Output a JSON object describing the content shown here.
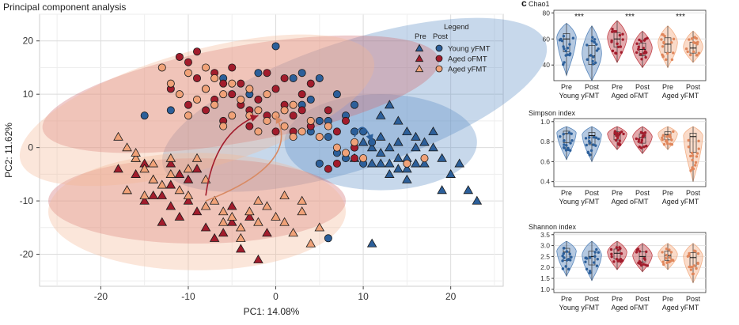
{
  "pca": {
    "title": "Principal component analysis",
    "xlabel": "PC1: 14.08%",
    "ylabel": "PC2: 11.62%",
    "legend": {
      "title": "Legend",
      "col_pre": "Pre",
      "col_post": "Post",
      "rows": [
        "Young yFMT",
        "Aged oFMT",
        "Aged yFMT"
      ]
    }
  },
  "panel_letter": "c",
  "stars": "***",
  "group_labels": [
    "Young yFMT",
    "Aged oFMT",
    "Aged yFMT"
  ],
  "prepost": [
    "Pre",
    "Post"
  ],
  "colors": {
    "young": "#2c5f9a",
    "aged_o": "#a21c2c",
    "aged_y": "#f0a278",
    "young_violin": "#5a88bd",
    "aged_o_violin": "#c24048",
    "aged_y_violin": "#f3b088"
  },
  "chart_data": [
    {
      "type": "scatter",
      "title": "Principal component analysis",
      "xlabel": "PC1: 14.08%",
      "ylabel": "PC2: 11.62%",
      "xlim": [
        -27,
        26
      ],
      "ylim": [
        -26,
        25
      ],
      "xticks": [
        -20,
        -10,
        0,
        10,
        20
      ],
      "yticks": [
        -20,
        -10,
        0,
        10,
        20
      ],
      "grid": true,
      "legend_position": "top-right",
      "ellipses": [
        {
          "group": "Young yFMT",
          "cx": 9,
          "cy": 8,
          "rx": 23,
          "ry": 12,
          "angle": 18
        },
        {
          "group": "Young yFMT",
          "cx": 12,
          "cy": 1,
          "rx": 11,
          "ry": 9,
          "angle": 0
        },
        {
          "group": "Aged oFMT",
          "cx": -4,
          "cy": 10,
          "rx": 23,
          "ry": 9,
          "angle": 10
        },
        {
          "group": "Aged oFMT",
          "cx": -9,
          "cy": -10,
          "rx": 17,
          "ry": 8,
          "angle": 0
        },
        {
          "group": "Aged yFMT",
          "cx": -9,
          "cy": 7,
          "rx": 21,
          "ry": 11,
          "angle": 16
        },
        {
          "group": "Aged yFMT",
          "cx": -9,
          "cy": -12,
          "rx": 17,
          "ry": 11,
          "angle": 0
        }
      ],
      "series": [
        {
          "name": "Young yFMT Pre",
          "marker": "triangle",
          "color": "#2c5f9a",
          "points": [
            [
              13,
              8
            ],
            [
              14,
              5
            ],
            [
              15,
              3
            ],
            [
              12,
              2
            ],
            [
              11,
              0
            ],
            [
              14,
              1
            ],
            [
              16,
              2
            ],
            [
              17,
              1
            ],
            [
              13,
              0
            ],
            [
              12,
              -1
            ],
            [
              15,
              -2
            ],
            [
              16,
              -3
            ],
            [
              14,
              -4
            ],
            [
              13,
              -5
            ],
            [
              12,
              -3
            ],
            [
              11,
              -3
            ],
            [
              15,
              -6
            ],
            [
              17,
              -3
            ],
            [
              18,
              0
            ],
            [
              19,
              -2
            ],
            [
              20,
              -5
            ],
            [
              21,
              -3
            ],
            [
              22,
              -8
            ],
            [
              23,
              -10
            ],
            [
              19,
              -8
            ],
            [
              13,
              -3
            ],
            [
              14,
              -2
            ],
            [
              11,
              -18
            ],
            [
              9,
              -2
            ],
            [
              10,
              1
            ],
            [
              16,
              0
            ],
            [
              18,
              3
            ],
            [
              12,
              6
            ],
            [
              15,
              -4
            ]
          ]
        },
        {
          "name": "Young yFMT Post",
          "marker": "circle",
          "color": "#2c5f9a",
          "points": [
            [
              0,
              19
            ],
            [
              -2,
              14
            ],
            [
              -6,
              13
            ],
            [
              -3,
              10
            ],
            [
              2,
              13
            ],
            [
              3,
              14
            ],
            [
              5,
              13
            ],
            [
              4,
              9
            ],
            [
              7,
              10
            ],
            [
              6,
              5
            ],
            [
              8,
              6
            ],
            [
              9,
              8
            ],
            [
              10,
              3
            ],
            [
              6,
              2
            ],
            [
              7,
              -1
            ],
            [
              5,
              -3
            ],
            [
              8,
              -2
            ],
            [
              9,
              0
            ],
            [
              -15,
              6
            ],
            [
              -12,
              7
            ],
            [
              3,
              8
            ],
            [
              11,
              1
            ],
            [
              6,
              -17
            ],
            [
              9,
              3
            ],
            [
              4,
              3
            ],
            [
              10,
              -3
            ],
            [
              5,
              5
            ]
          ]
        },
        {
          "name": "Aged oFMT Pre",
          "marker": "triangle",
          "color": "#a21c2c",
          "points": [
            [
              -17,
              -8
            ],
            [
              -16,
              -5
            ],
            [
              -18,
              -4
            ],
            [
              -15,
              -3
            ],
            [
              -14,
              -6
            ],
            [
              -13,
              -9
            ],
            [
              -12,
              -11
            ],
            [
              -11,
              -13
            ],
            [
              -13,
              -14
            ],
            [
              -12,
              -7
            ],
            [
              -10,
              -10
            ],
            [
              -9,
              -12
            ],
            [
              -8,
              -15
            ],
            [
              -6,
              -16
            ],
            [
              -5,
              -14
            ],
            [
              -3,
              -13
            ],
            [
              -4,
              -19
            ],
            [
              -7,
              -17
            ],
            [
              -5,
              -11
            ],
            [
              -1,
              -16
            ],
            [
              -2,
              -21
            ],
            [
              -14,
              -9
            ],
            [
              -11,
              -5
            ],
            [
              -9,
              -4
            ],
            [
              -10,
              -6
            ],
            [
              -16,
              -2
            ],
            [
              -12,
              -3
            ],
            [
              -15,
              -10
            ]
          ]
        },
        {
          "name": "Aged oFMT Post",
          "marker": "circle",
          "color": "#a21c2c",
          "points": [
            [
              -11,
              17
            ],
            [
              -10,
              16
            ],
            [
              -9,
              13
            ],
            [
              -8,
              11
            ],
            [
              -7,
              9
            ],
            [
              -6,
              12
            ],
            [
              -5,
              10
            ],
            [
              -4,
              8
            ],
            [
              -3,
              7
            ],
            [
              -2,
              9
            ],
            [
              -1,
              6
            ],
            [
              0,
              11
            ],
            [
              1,
              8
            ],
            [
              2,
              6
            ],
            [
              3,
              10
            ],
            [
              4,
              4
            ],
            [
              5,
              2
            ],
            [
              6,
              7
            ],
            [
              7,
              3
            ],
            [
              8,
              5
            ],
            [
              9,
              0
            ],
            [
              -9,
              18
            ],
            [
              -7,
              14
            ],
            [
              -5,
              15
            ],
            [
              -12,
              11
            ],
            [
              -10,
              8
            ],
            [
              -6,
              5
            ],
            [
              -4,
              12
            ],
            [
              1,
              13
            ],
            [
              2,
              3
            ],
            [
              -8,
              7
            ],
            [
              -3,
              4
            ],
            [
              0,
              3
            ],
            [
              6,
              -4
            ],
            [
              7,
              -3
            ],
            [
              9,
              -2
            ],
            [
              -1,
              14
            ],
            [
              4,
              12
            ],
            [
              3,
              7
            ]
          ]
        },
        {
          "name": "Aged yFMT Pre",
          "marker": "triangle",
          "color": "#f0a278",
          "points": [
            [
              -18,
              2
            ],
            [
              -17,
              0
            ],
            [
              -16,
              -2
            ],
            [
              -15,
              -4
            ],
            [
              -14,
              -6
            ],
            [
              -13,
              -7
            ],
            [
              -12,
              -5
            ],
            [
              -11,
              -8
            ],
            [
              -10,
              -4
            ],
            [
              -9,
              -2
            ],
            [
              -8,
              -6
            ],
            [
              -7,
              -10
            ],
            [
              -6,
              -12
            ],
            [
              -5,
              -13
            ],
            [
              -4,
              -15
            ],
            [
              -3,
              -12
            ],
            [
              -2,
              -10
            ],
            [
              -1,
              -11
            ],
            [
              0,
              -13
            ],
            [
              1,
              -14
            ],
            [
              2,
              -16
            ],
            [
              3,
              -12
            ],
            [
              4,
              -18
            ],
            [
              5,
              -15
            ],
            [
              -16,
              -1
            ],
            [
              -14,
              -3
            ],
            [
              -12,
              -2
            ],
            [
              -10,
              -9
            ],
            [
              -8,
              -11
            ],
            [
              -6,
              -14
            ],
            [
              -4,
              -17
            ],
            [
              -2,
              -14
            ],
            [
              -17,
              -8
            ],
            [
              -15,
              -9
            ],
            [
              1,
              -9
            ],
            [
              3,
              -10
            ]
          ]
        },
        {
          "name": "Aged yFMT Post",
          "marker": "circle",
          "color": "#f0a278",
          "points": [
            [
              -13,
              15
            ],
            [
              -12,
              12
            ],
            [
              -11,
              10
            ],
            [
              -10,
              14
            ],
            [
              -9,
              9
            ],
            [
              -8,
              11
            ],
            [
              -7,
              8
            ],
            [
              -6,
              10
            ],
            [
              -5,
              12
            ],
            [
              -4,
              9
            ],
            [
              -3,
              6
            ],
            [
              -2,
              7
            ],
            [
              -1,
              5
            ],
            [
              0,
              6
            ],
            [
              1,
              4
            ],
            [
              2,
              8
            ],
            [
              3,
              3
            ],
            [
              4,
              5
            ],
            [
              5,
              2
            ],
            [
              6,
              4
            ],
            [
              7,
              0
            ],
            [
              8,
              -1
            ],
            [
              9,
              1
            ],
            [
              10,
              -2
            ],
            [
              -7,
              13
            ],
            [
              -5,
              6
            ],
            [
              -3,
              11
            ],
            [
              -1,
              10
            ],
            [
              1,
              7
            ],
            [
              -8,
              15
            ],
            [
              -10,
              6
            ],
            [
              -6,
              4
            ],
            [
              17,
              -2
            ],
            [
              15,
              -3
            ],
            [
              -2,
              3
            ],
            [
              2,
              2
            ]
          ]
        }
      ],
      "trajectories": [
        {
          "group": "Young yFMT",
          "from": [
            9,
            2
          ],
          "to": [
            11,
            1
          ],
          "via": [
            10,
            6
          ]
        },
        {
          "group": "Aged oFMT",
          "from": [
            -8,
            -9
          ],
          "to": [
            -2,
            6
          ],
          "via": [
            -7,
            3
          ]
        },
        {
          "group": "Aged yFMT",
          "from": [
            -8,
            -10
          ],
          "to": [
            0,
            6
          ],
          "via": [
            3,
            -3
          ]
        }
      ]
    },
    {
      "type": "violin",
      "title": "Chao1",
      "ylim": [
        28,
        82
      ],
      "yticks": [
        40,
        60,
        80
      ],
      "categories": [
        "Young yFMT Pre",
        "Young yFMT Post",
        "Aged oFMT Pre",
        "Aged oFMT Post",
        "Aged yFMT Pre",
        "Aged yFMT Post"
      ],
      "medians": [
        60,
        47,
        60,
        52,
        56,
        53
      ],
      "ranges": [
        [
          32,
          72
        ],
        [
          28,
          70
        ],
        [
          42,
          74
        ],
        [
          38,
          66
        ],
        [
          38,
          70
        ],
        [
          42,
          66
        ]
      ],
      "significance": [
        "***",
        "***",
        "***"
      ]
    },
    {
      "type": "violin",
      "title": "Simpson index",
      "ylim": [
        0.35,
        1.03
      ],
      "yticks": [
        0.4,
        0.6,
        0.8,
        1.0
      ],
      "categories": [
        "Young yFMT Pre",
        "Young yFMT Post",
        "Aged oFMT Pre",
        "Aged oFMT Post",
        "Aged yFMT Pre",
        "Aged yFMT Post"
      ],
      "medians": [
        0.88,
        0.86,
        0.87,
        0.84,
        0.87,
        0.85
      ],
      "ranges": [
        [
          0.62,
          0.95
        ],
        [
          0.6,
          0.95
        ],
        [
          0.72,
          0.95
        ],
        [
          0.68,
          0.95
        ],
        [
          0.72,
          0.95
        ],
        [
          0.4,
          0.95
        ]
      ]
    },
    {
      "type": "violin",
      "title": "Shannon index",
      "ylim": [
        0.85,
        3.6
      ],
      "yticks": [
        1.0,
        1.5,
        2.0,
        2.5,
        3.0,
        3.5
      ],
      "categories": [
        "Young yFMT Pre",
        "Young yFMT Post",
        "Aged oFMT Pre",
        "Aged oFMT Post",
        "Aged yFMT Pre",
        "Aged yFMT Post"
      ],
      "medians": [
        2.7,
        2.5,
        2.65,
        2.5,
        2.55,
        2.45
      ],
      "ranges": [
        [
          1.6,
          3.2
        ],
        [
          1.4,
          3.2
        ],
        [
          1.9,
          3.2
        ],
        [
          1.8,
          3.1
        ],
        [
          1.9,
          3.1
        ],
        [
          1.3,
          3.1
        ]
      ]
    }
  ]
}
